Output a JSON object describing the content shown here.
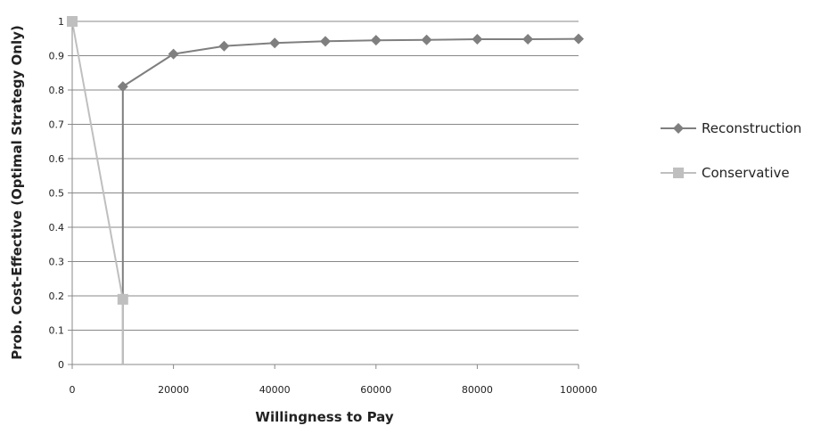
{
  "chart_data": {
    "type": "line",
    "title": "",
    "xlabel": "Willingness to Pay",
    "ylabel": "Prob. Cost-Effective (Optimal Strategy Only)",
    "xlim": [
      0,
      100000
    ],
    "ylim": [
      0,
      1
    ],
    "x_ticks": [
      "0",
      "20000",
      "40000",
      "60000",
      "80000",
      "100000"
    ],
    "y_ticks": [
      "0",
      "0.1",
      "0.2",
      "0.3",
      "0.4",
      "0.5",
      "0.6",
      "0.7",
      "0.8",
      "0.9",
      "1"
    ],
    "grid": "horizontal",
    "legend_position": "right",
    "series": [
      {
        "name": "Reconstruction",
        "color": "#7f7f7f",
        "marker": "diamond",
        "points": [
          [
            10000,
            0
          ],
          [
            10000,
            0.81
          ],
          [
            20000,
            0.905
          ],
          [
            30000,
            0.928
          ],
          [
            40000,
            0.937
          ],
          [
            50000,
            0.942
          ],
          [
            60000,
            0.945
          ],
          [
            70000,
            0.946
          ],
          [
            80000,
            0.948
          ],
          [
            90000,
            0.948
          ],
          [
            100000,
            0.949
          ]
        ],
        "marker_from_index": 1
      },
      {
        "name": "Conservative",
        "color": "#bfbfbf",
        "marker": "square",
        "points": [
          [
            0,
            1
          ],
          [
            10000,
            0.19
          ],
          [
            10000,
            0
          ]
        ],
        "marker_until_index": 1
      }
    ]
  }
}
